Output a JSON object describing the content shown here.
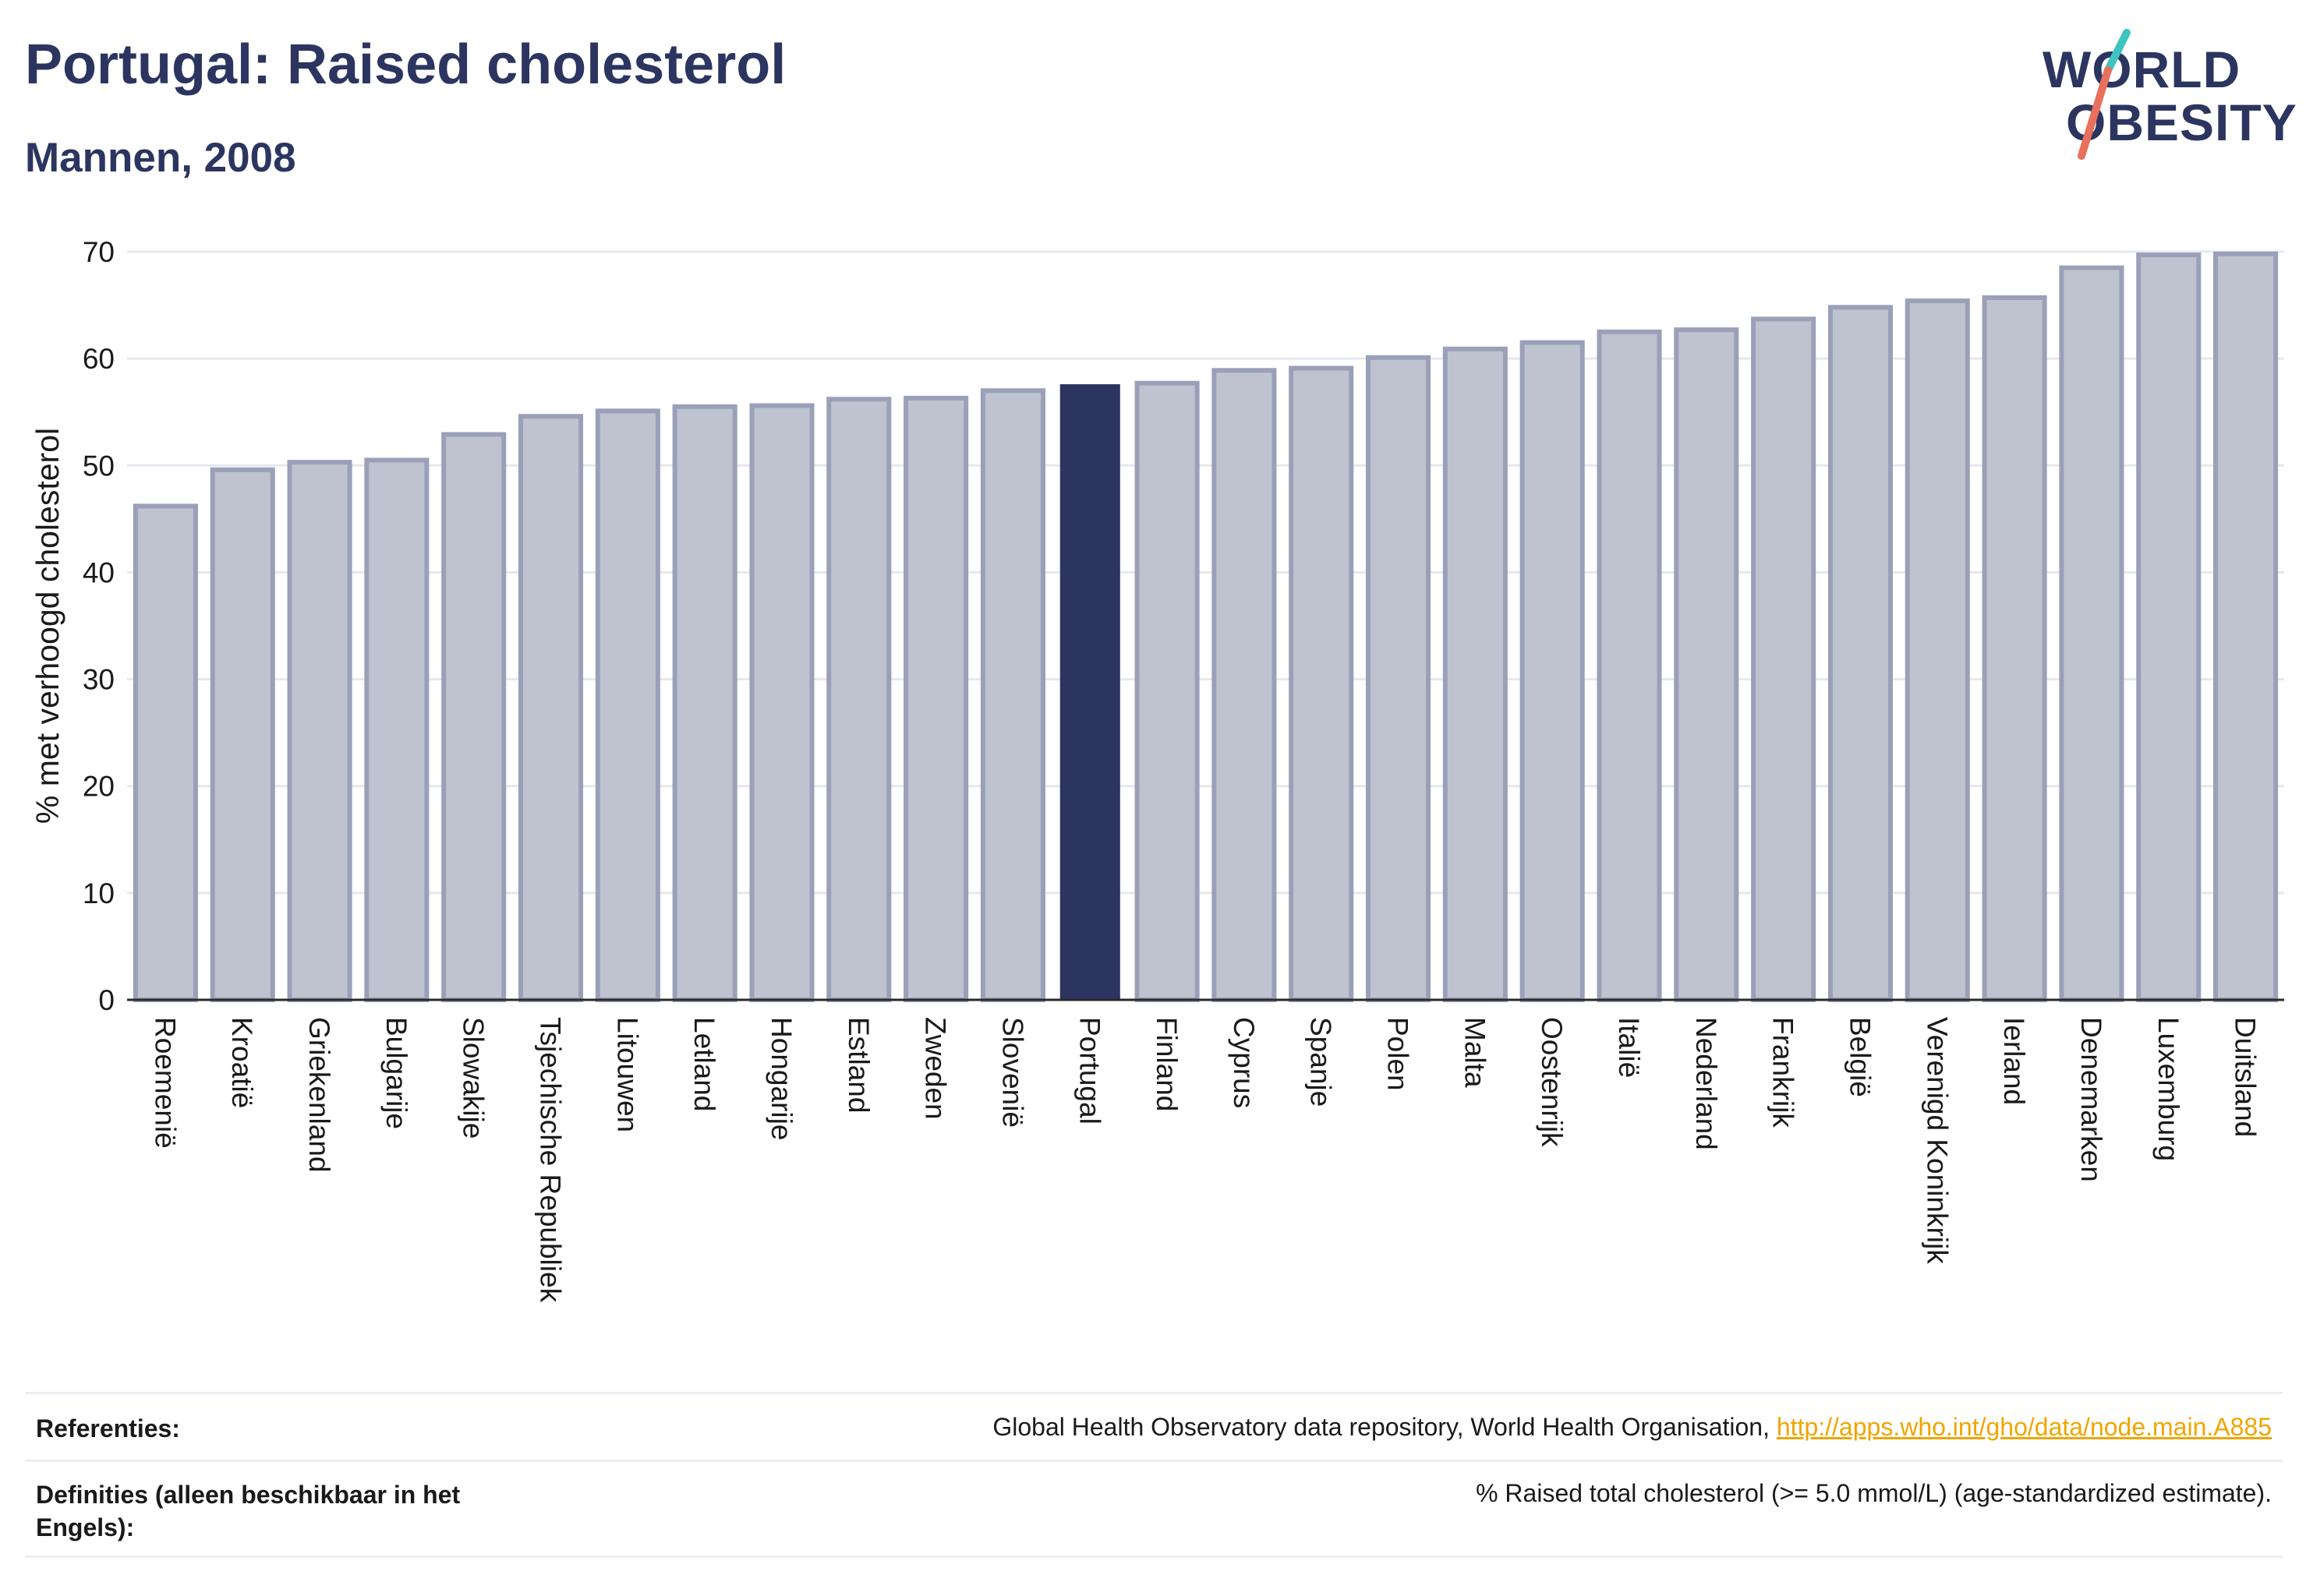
{
  "header": {
    "title": "Portugal: Raised cholesterol",
    "subtitle": "Mannen, 2008"
  },
  "logo": {
    "line1": "WORLD",
    "line2": "OBESITY",
    "colors": {
      "text": "#2b3560",
      "slash_top": "#3cc4c0",
      "slash_bottom": "#e8705c"
    }
  },
  "chart_data": {
    "type": "bar",
    "ylabel": "% met verhoogd cholesterol",
    "ylim": [
      0,
      70
    ],
    "yticks": [
      0,
      10,
      20,
      30,
      40,
      50,
      60,
      70
    ],
    "grid": true,
    "highlight": "Portugal",
    "colors": {
      "bar": "#bfc3d0",
      "bar_border": "#9aa0b8",
      "highlight": "#2b3560",
      "grid": "#e6e8ef"
    },
    "categories": [
      "Roemenië",
      "Kroatië",
      "Griekenland",
      "Bulgarije",
      "Slowakije",
      "Tsjechische Republiek",
      "Litouwen",
      "Letland",
      "Hongarije",
      "Estland",
      "Zweden",
      "Slovenië",
      "Portugal",
      "Finland",
      "Cyprus",
      "Spanje",
      "Polen",
      "Malta",
      "Oostenrijk",
      "Italië",
      "Nederland",
      "Frankrijk",
      "België",
      "Verenigd Koninkrijk",
      "Ierland",
      "Denemarken",
      "Luxemburg",
      "Duitsland"
    ],
    "values": [
      46.2,
      49.6,
      50.3,
      50.5,
      52.9,
      54.6,
      55.1,
      55.5,
      55.6,
      56.2,
      56.3,
      57.0,
      57.6,
      57.7,
      58.9,
      59.1,
      60.1,
      60.9,
      61.5,
      62.5,
      62.7,
      63.7,
      64.8,
      65.4,
      65.7,
      68.5,
      69.7,
      69.8
    ]
  },
  "footer": {
    "references_label": "Referenties:",
    "references_text": "Global Health Observatory data repository, World Health Organisation, ",
    "references_link": "http://apps.who.int/gho/data/node.main.A885",
    "definitions_label": "Definities (alleen beschikbaar in het Engels):",
    "definitions_text": "% Raised total cholesterol (>= 5.0 mmol/L) (age-standardized estimate)."
  }
}
